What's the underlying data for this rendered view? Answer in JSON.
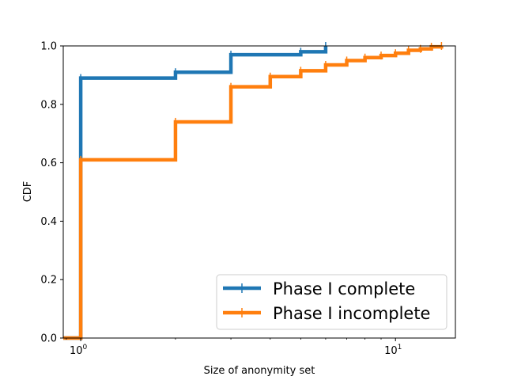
{
  "chart_data": {
    "type": "line",
    "drawstyle": "steps-post",
    "xscale": "log",
    "xlabel": "Size of anonymity set",
    "ylabel": "CDF",
    "xlim": [
      0.88,
      15.5
    ],
    "ylim": [
      0,
      1.0
    ],
    "yticks": [
      "0.0",
      "0.2",
      "0.4",
      "0.6",
      "0.8",
      "1.0"
    ],
    "xticks": [
      {
        "base": "10",
        "exp": "0",
        "value": 1
      },
      {
        "base": "10",
        "exp": "1",
        "value": 10
      }
    ],
    "legend_position": "lower-right",
    "grid": false,
    "series": [
      {
        "name": "Phase I complete",
        "color": "#1f77b4",
        "x": [
          0.88,
          1,
          2,
          3,
          5,
          6
        ],
        "y": [
          0.0,
          0.89,
          0.91,
          0.97,
          0.98,
          1.0
        ]
      },
      {
        "name": "Phase I incomplete",
        "color": "#ff7f0e",
        "x": [
          0.88,
          1,
          2,
          3,
          4,
          5,
          6,
          7,
          8,
          9,
          10,
          11,
          12,
          13,
          14
        ],
        "y": [
          0.0,
          0.61,
          0.74,
          0.86,
          0.895,
          0.915,
          0.935,
          0.95,
          0.96,
          0.967,
          0.975,
          0.985,
          0.99,
          0.997,
          1.0
        ]
      }
    ]
  }
}
